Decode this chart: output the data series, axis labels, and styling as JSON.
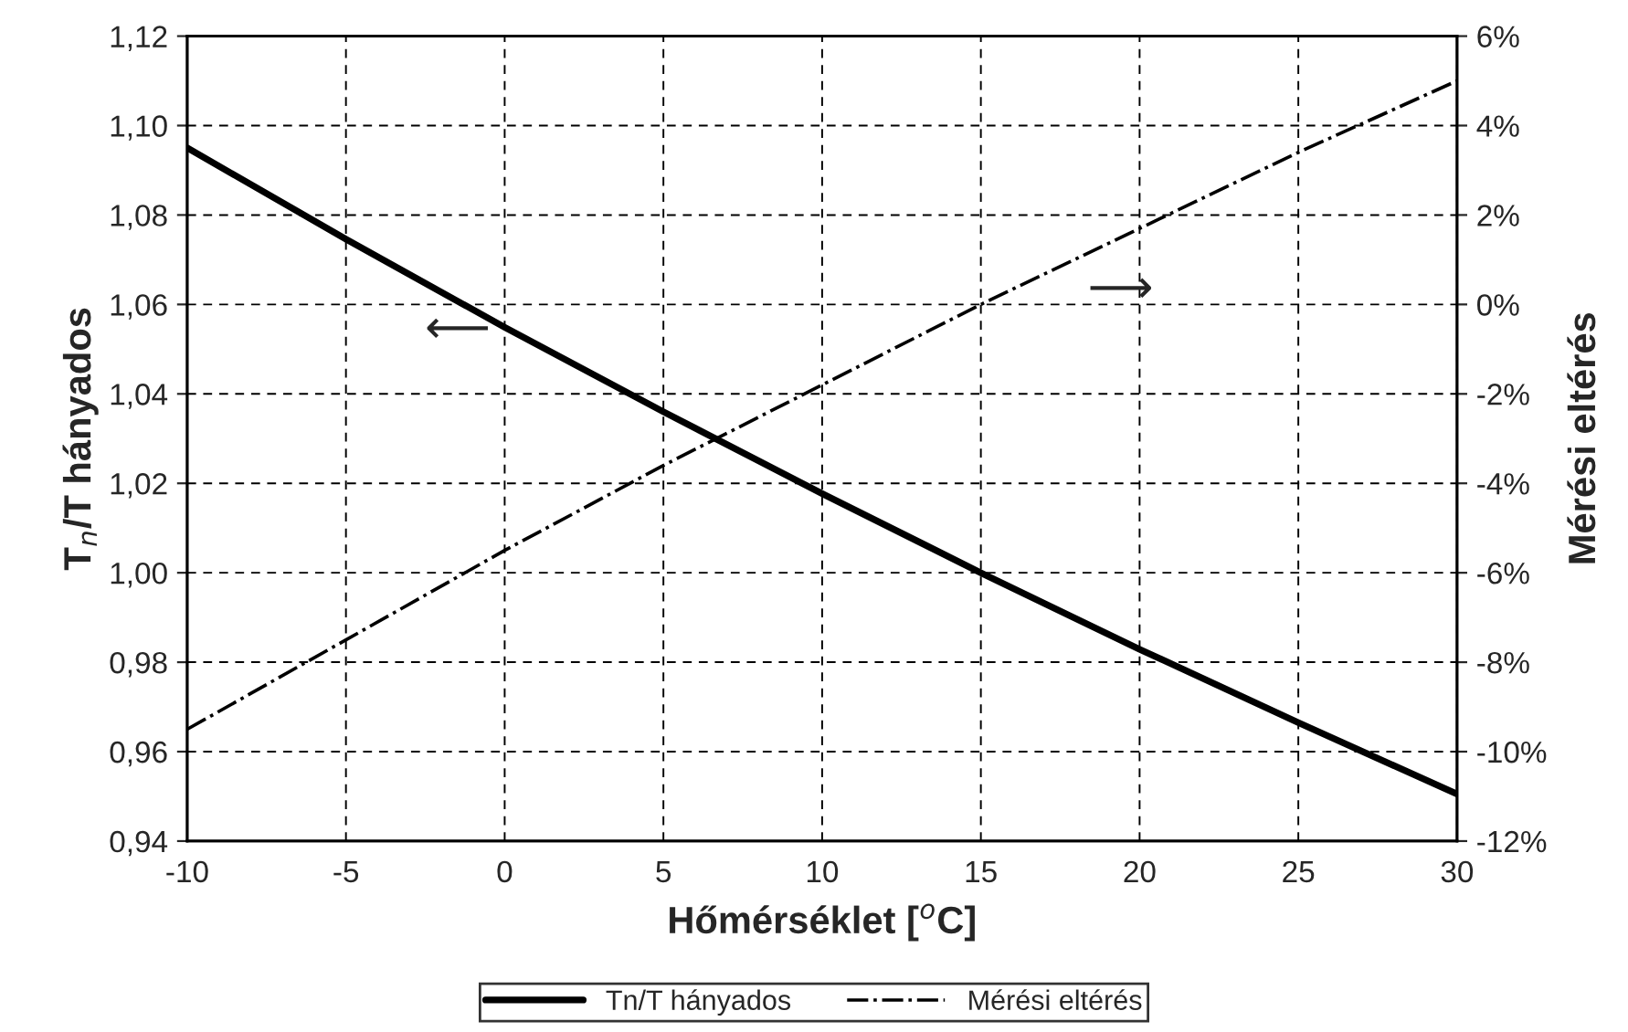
{
  "chart_data": {
    "type": "line",
    "xlabel": "Hőmérséklet [$^{o}$C]",
    "ylabel": "T$_{n}$/T hányados",
    "y2label": "Mérési eltérés",
    "x": [
      -10,
      -5,
      0,
      5,
      10,
      15,
      20,
      25,
      30
    ],
    "series": [
      {
        "name": "Tn/T hányados",
        "color": "#000000",
        "line_style": "solid",
        "values": [
          1.095,
          1.0746,
          1.0549,
          1.036,
          1.0177,
          1.0,
          0.9829,
          0.9665,
          0.9505
        ]
      },
      {
        "name": "Mérési eltérés",
        "color": "#000000",
        "line_style": "dashdot",
        "axis": "y2",
        "values": [
          -9.5,
          -7.5,
          -5.5,
          -3.6,
          -1.8,
          0,
          1.7,
          3.4,
          5.0
        ]
      }
    ],
    "xlim": [
      -10,
      30
    ],
    "xticks": [
      -10,
      -5,
      0,
      5,
      10,
      15,
      20,
      25,
      30
    ],
    "ylim": [
      0.94,
      1.12
    ],
    "yticks": [
      {
        "value": 0.94,
        "label": "0,94"
      },
      {
        "value": 0.96,
        "label": "0,96"
      },
      {
        "value": 0.98,
        "label": "0,98"
      },
      {
        "value": 1.0,
        "label": "1,00"
      },
      {
        "value": 1.02,
        "label": "1,02"
      },
      {
        "value": 1.04,
        "label": "1,04"
      },
      {
        "value": 1.06,
        "label": "1,06"
      },
      {
        "value": 1.08,
        "label": "1,08"
      },
      {
        "value": 1.1,
        "label": "1,10"
      },
      {
        "value": 1.12,
        "label": "1,12"
      }
    ],
    "y2lim": [
      -12,
      6
    ],
    "y2ticks": [
      {
        "value": -12,
        "label": "-12%"
      },
      {
        "value": -10,
        "label": "-10%"
      },
      {
        "value": -8,
        "label": "-8%"
      },
      {
        "value": -6,
        "label": "-6%"
      },
      {
        "value": -4,
        "label": "-4%"
      },
      {
        "value": -2,
        "label": "-2%"
      },
      {
        "value": 0,
        "label": "0%"
      },
      {
        "value": 2,
        "label": "2%"
      },
      {
        "value": 4,
        "label": "4%"
      },
      {
        "value": 6,
        "label": "6%"
      }
    ],
    "annotations": [
      "⟵",
      "⟶"
    ],
    "grid": true,
    "legend": "bottom"
  }
}
